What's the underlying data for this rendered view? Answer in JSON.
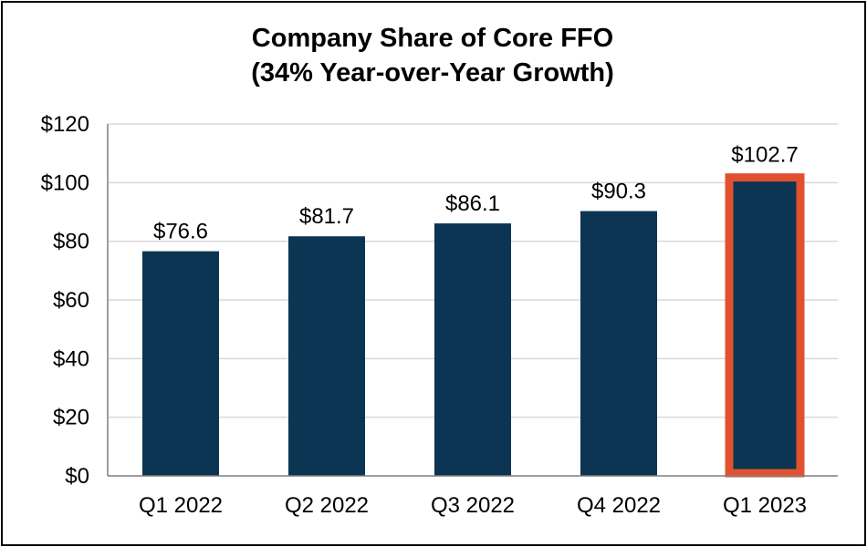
{
  "chart_data": {
    "type": "bar",
    "title": "Company Share of Core FFO",
    "subtitle": "(34% Year-over-Year Growth)",
    "categories": [
      "Q1 2022",
      "Q2 2022",
      "Q3 2022",
      "Q4 2022",
      "Q1 2023"
    ],
    "values": [
      76.6,
      81.7,
      86.1,
      90.3,
      102.7
    ],
    "data_labels": [
      "$76.6",
      "$81.7",
      "$86.1",
      "$90.3",
      "$102.7"
    ],
    "y_ticks": [
      "$0",
      "$20",
      "$40",
      "$60",
      "$80",
      "$100",
      "$120"
    ],
    "ylim": [
      0,
      120
    ],
    "grid": true,
    "highlighted_category": "Q1 2023",
    "colors": {
      "bar": "#0b3552",
      "highlight_outline": "#e2512f",
      "grid": "#d9d9d9",
      "axis": "#7f7f7f"
    }
  }
}
